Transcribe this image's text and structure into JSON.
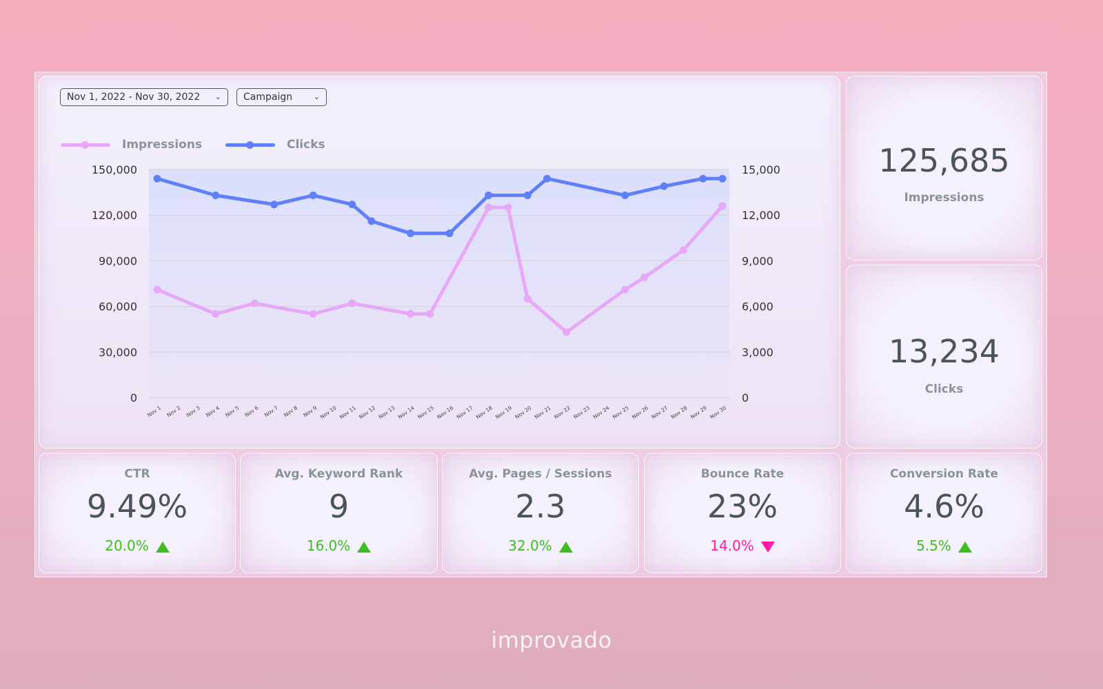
{
  "filters": {
    "date_range": "Nov 1, 2022 - Nov 30, 2022",
    "campaign": "Campaign"
  },
  "colors": {
    "impressions": "#e8a8f8",
    "clicks": "#5f80f8",
    "positive": "#3ebd22",
    "negative": "#ff1aa8"
  },
  "chart_data": {
    "type": "line",
    "legend": [
      "Impressions",
      "Clicks"
    ],
    "legend_position": "top-left",
    "grid": true,
    "x_categories": [
      "Nov 1",
      "Nov 2",
      "Nov 3",
      "Nov 4",
      "Nov 5",
      "Nov 6",
      "Nov 7",
      "Nov 8",
      "Nov 9",
      "Nov 10",
      "Nov 11",
      "Nov 12",
      "Nov 13",
      "Nov 14",
      "Nov 15",
      "Nov 16",
      "Nov 17",
      "Nov 18",
      "Nov 19",
      "Nov 20",
      "Nov 21",
      "Nov 22",
      "Nov 23",
      "Nov 24",
      "Nov 25",
      "Nov 26",
      "Nov 27",
      "Nov 28",
      "Nov 29",
      "Nov 30"
    ],
    "y_left": {
      "ticks": [
        "0",
        "30,000",
        "60,000",
        "90,000",
        "120,000",
        "150,000"
      ],
      "range": [
        0,
        150000
      ]
    },
    "y_right": {
      "ticks": [
        "0",
        "3,000",
        "6,000",
        "9,000",
        "12,000",
        "15,000"
      ],
      "range": [
        0,
        15000
      ]
    },
    "series": [
      {
        "name": "Impressions",
        "axis": "left",
        "points": [
          [
            "Nov 1",
            71000
          ],
          [
            "Nov 4",
            55000
          ],
          [
            "Nov 6",
            62000
          ],
          [
            "Nov 9",
            55000
          ],
          [
            "Nov 11",
            62000
          ],
          [
            "Nov 14",
            55000
          ],
          [
            "Nov 15",
            55000
          ],
          [
            "Nov 18",
            125000
          ],
          [
            "Nov 19",
            125000
          ],
          [
            "Nov 20",
            65000
          ],
          [
            "Nov 22",
            43000
          ],
          [
            "Nov 25",
            71000
          ],
          [
            "Nov 26",
            79000
          ],
          [
            "Nov 28",
            97000
          ],
          [
            "Nov 30",
            126000
          ]
        ]
      },
      {
        "name": "Clicks",
        "axis": "right",
        "points": [
          [
            "Nov 1",
            14400
          ],
          [
            "Nov 4",
            13300
          ],
          [
            "Nov 7",
            12700
          ],
          [
            "Nov 9",
            13300
          ],
          [
            "Nov 11",
            12700
          ],
          [
            "Nov 12",
            11600
          ],
          [
            "Nov 14",
            10800
          ],
          [
            "Nov 16",
            10800
          ],
          [
            "Nov 18",
            13300
          ],
          [
            "Nov 20",
            13300
          ],
          [
            "Nov 21",
            14400
          ],
          [
            "Nov 25",
            13300
          ],
          [
            "Nov 27",
            13900
          ],
          [
            "Nov 29",
            14400
          ],
          [
            "Nov 30",
            14400
          ]
        ]
      }
    ]
  },
  "totals": [
    {
      "value": "125,685",
      "label": "Impressions"
    },
    {
      "value": "13,234",
      "label": "Clicks"
    }
  ],
  "kpis": [
    {
      "title": "CTR",
      "value": "9.49%",
      "change": "20.0%",
      "direction": "up"
    },
    {
      "title": "Avg. Keyword Rank",
      "value": "9",
      "change": "16.0%",
      "direction": "up"
    },
    {
      "title": "Avg. Pages / Sessions",
      "value": "2.3",
      "change": "32.0%",
      "direction": "up"
    },
    {
      "title": "Bounce Rate",
      "value": "23%",
      "change": "14.0%",
      "direction": "down"
    },
    {
      "title": "Conversion Rate",
      "value": "4.6%",
      "change": "5.5%",
      "direction": "up"
    }
  ],
  "brand": "improvado"
}
